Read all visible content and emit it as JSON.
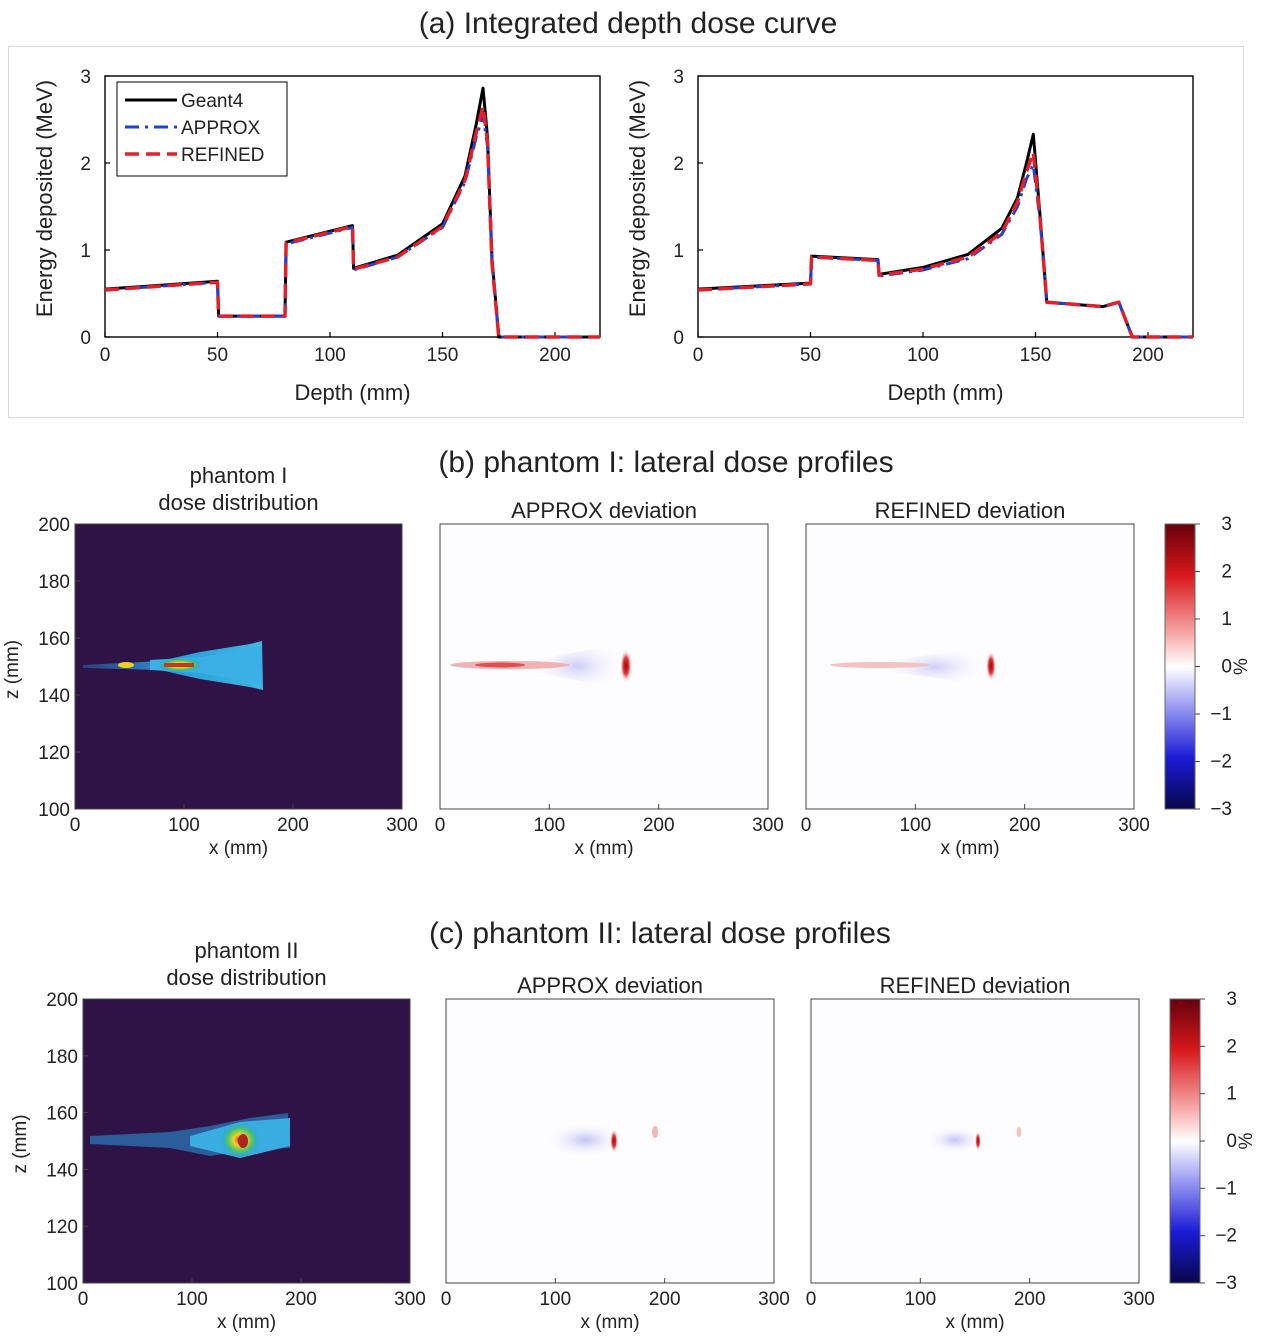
{
  "section_titles": {
    "a": "(a) Integrated depth dose curve",
    "b": "(b) phantom I: lateral dose profiles",
    "c": "(c) phantom II: lateral dose profiles"
  },
  "colors": {
    "geant4": "#000000",
    "approx": "#1f3fd6",
    "refined": "#e0202a",
    "heatmap_bg": "#2e1346"
  },
  "chart_data": [
    {
      "id": "depth-dose-phantom-1",
      "type": "line",
      "xlabel": "Depth (mm)",
      "ylabel": "Energy deposited (MeV)",
      "xlim": [
        0,
        220
      ],
      "ylim": [
        0,
        3
      ],
      "xticks": [
        0,
        50,
        100,
        150,
        200
      ],
      "yticks": [
        0,
        1,
        2,
        3
      ],
      "legend_position": "top-left",
      "series": [
        {
          "name": "Geant4",
          "style": "solid",
          "x": [
            0,
            50,
            50.5,
            80,
            80.5,
            110,
            110.5,
            130,
            150,
            160,
            165,
            168,
            170,
            172,
            175,
            220
          ],
          "y": [
            0.55,
            0.64,
            0.24,
            0.24,
            1.09,
            1.28,
            0.79,
            0.94,
            1.3,
            1.85,
            2.45,
            2.86,
            2.3,
            0.9,
            0.0,
            0.0
          ]
        },
        {
          "name": "APPROX",
          "style": "dashdot",
          "x": [
            0,
            50,
            50.5,
            80,
            80.5,
            110,
            110.5,
            130,
            150,
            160,
            165,
            168,
            170,
            172,
            175,
            220
          ],
          "y": [
            0.54,
            0.63,
            0.24,
            0.24,
            1.07,
            1.26,
            0.77,
            0.92,
            1.26,
            1.78,
            2.3,
            2.55,
            2.2,
            0.85,
            0.0,
            0.0
          ]
        },
        {
          "name": "REFINED",
          "style": "dashed",
          "x": [
            0,
            50,
            50.5,
            80,
            80.5,
            110,
            110.5,
            130,
            150,
            160,
            165,
            168,
            170,
            172,
            175,
            220
          ],
          "y": [
            0.54,
            0.63,
            0.24,
            0.24,
            1.08,
            1.27,
            0.78,
            0.92,
            1.27,
            1.8,
            2.35,
            2.65,
            2.25,
            0.85,
            0.0,
            0.0
          ]
        }
      ]
    },
    {
      "id": "depth-dose-phantom-2",
      "type": "line",
      "xlabel": "Depth (mm)",
      "ylabel": "Energy deposited (MeV)",
      "xlim": [
        0,
        220
      ],
      "ylim": [
        0,
        3
      ],
      "xticks": [
        0,
        50,
        100,
        150,
        200
      ],
      "yticks": [
        0,
        1,
        2,
        3
      ],
      "series": [
        {
          "name": "Geant4",
          "style": "solid",
          "x": [
            0,
            50,
            50.5,
            80,
            80.5,
            100,
            120,
            135,
            142,
            146,
            149,
            152,
            155,
            180,
            187,
            193,
            220
          ],
          "y": [
            0.55,
            0.62,
            0.93,
            0.89,
            0.72,
            0.8,
            0.95,
            1.25,
            1.6,
            2.0,
            2.33,
            1.4,
            0.4,
            0.35,
            0.4,
            0.0,
            0.0
          ]
        },
        {
          "name": "APPROX",
          "style": "dashdot",
          "x": [
            0,
            50,
            50.5,
            80,
            80.5,
            100,
            120,
            135,
            142,
            146,
            149,
            152,
            155,
            180,
            187,
            193,
            220
          ],
          "y": [
            0.54,
            0.61,
            0.92,
            0.88,
            0.7,
            0.77,
            0.9,
            1.18,
            1.5,
            1.82,
            1.98,
            1.35,
            0.4,
            0.35,
            0.4,
            0.0,
            0.0
          ]
        },
        {
          "name": "REFINED",
          "style": "dashed",
          "x": [
            0,
            50,
            50.5,
            80,
            80.5,
            100,
            120,
            135,
            142,
            146,
            149,
            152,
            155,
            180,
            187,
            193,
            220
          ],
          "y": [
            0.54,
            0.61,
            0.92,
            0.88,
            0.71,
            0.78,
            0.92,
            1.2,
            1.55,
            1.9,
            2.12,
            1.38,
            0.4,
            0.35,
            0.4,
            0.0,
            0.0
          ]
        }
      ]
    },
    {
      "id": "phantom1-dose-distribution",
      "type": "heatmap",
      "title": "phantom I\ndose distribution",
      "xlabel": "x (mm)",
      "ylabel": "z (mm)",
      "xlim": [
        0,
        300
      ],
      "ylim": [
        100,
        200
      ],
      "xticks": [
        0,
        100,
        200,
        300
      ],
      "yticks": [
        100,
        120,
        140,
        160,
        180,
        200
      ],
      "beam": {
        "z_center": 150,
        "start_x": 0,
        "end_x": 170,
        "peak_x": 100
      }
    },
    {
      "id": "phantom1-approx-deviation",
      "type": "heatmap",
      "title": "APPROX deviation",
      "xlabel": "x (mm)",
      "xlim": [
        0,
        300
      ],
      "xticks": [
        0,
        100,
        200,
        300
      ],
      "colorbar_range": [
        -3,
        3
      ]
    },
    {
      "id": "phantom1-refined-deviation",
      "type": "heatmap",
      "title": "REFINED deviation",
      "xlabel": "x (mm)",
      "xlim": [
        0,
        300
      ],
      "xticks": [
        0,
        100,
        200,
        300
      ],
      "colorbar_range": [
        -3,
        3
      ]
    },
    {
      "id": "phantom2-dose-distribution",
      "type": "heatmap",
      "title": "phantom II\ndose distribution",
      "xlabel": "x (mm)",
      "ylabel": "z (mm)",
      "xlim": [
        0,
        300
      ],
      "ylim": [
        100,
        200
      ],
      "xticks": [
        0,
        100,
        200,
        300
      ],
      "yticks": [
        100,
        120,
        140,
        160,
        180,
        200
      ],
      "beam": {
        "z_center": 150,
        "start_x": 0,
        "end_x": 190,
        "peak_x": 148
      }
    },
    {
      "id": "phantom2-approx-deviation",
      "type": "heatmap",
      "title": "APPROX deviation",
      "xlabel": "x (mm)",
      "xlim": [
        0,
        300
      ],
      "xticks": [
        0,
        100,
        200,
        300
      ],
      "colorbar_range": [
        -3,
        3
      ]
    },
    {
      "id": "phantom2-refined-deviation",
      "type": "heatmap",
      "title": "REFINED deviation",
      "xlabel": "x (mm)",
      "xlim": [
        0,
        300
      ],
      "xticks": [
        0,
        100,
        200,
        300
      ],
      "colorbar_range": [
        -3,
        3
      ]
    }
  ],
  "colorbar": {
    "label": "%",
    "ticks": [
      "3",
      "2",
      "1",
      "0",
      "−1",
      "−2",
      "−3"
    ]
  }
}
